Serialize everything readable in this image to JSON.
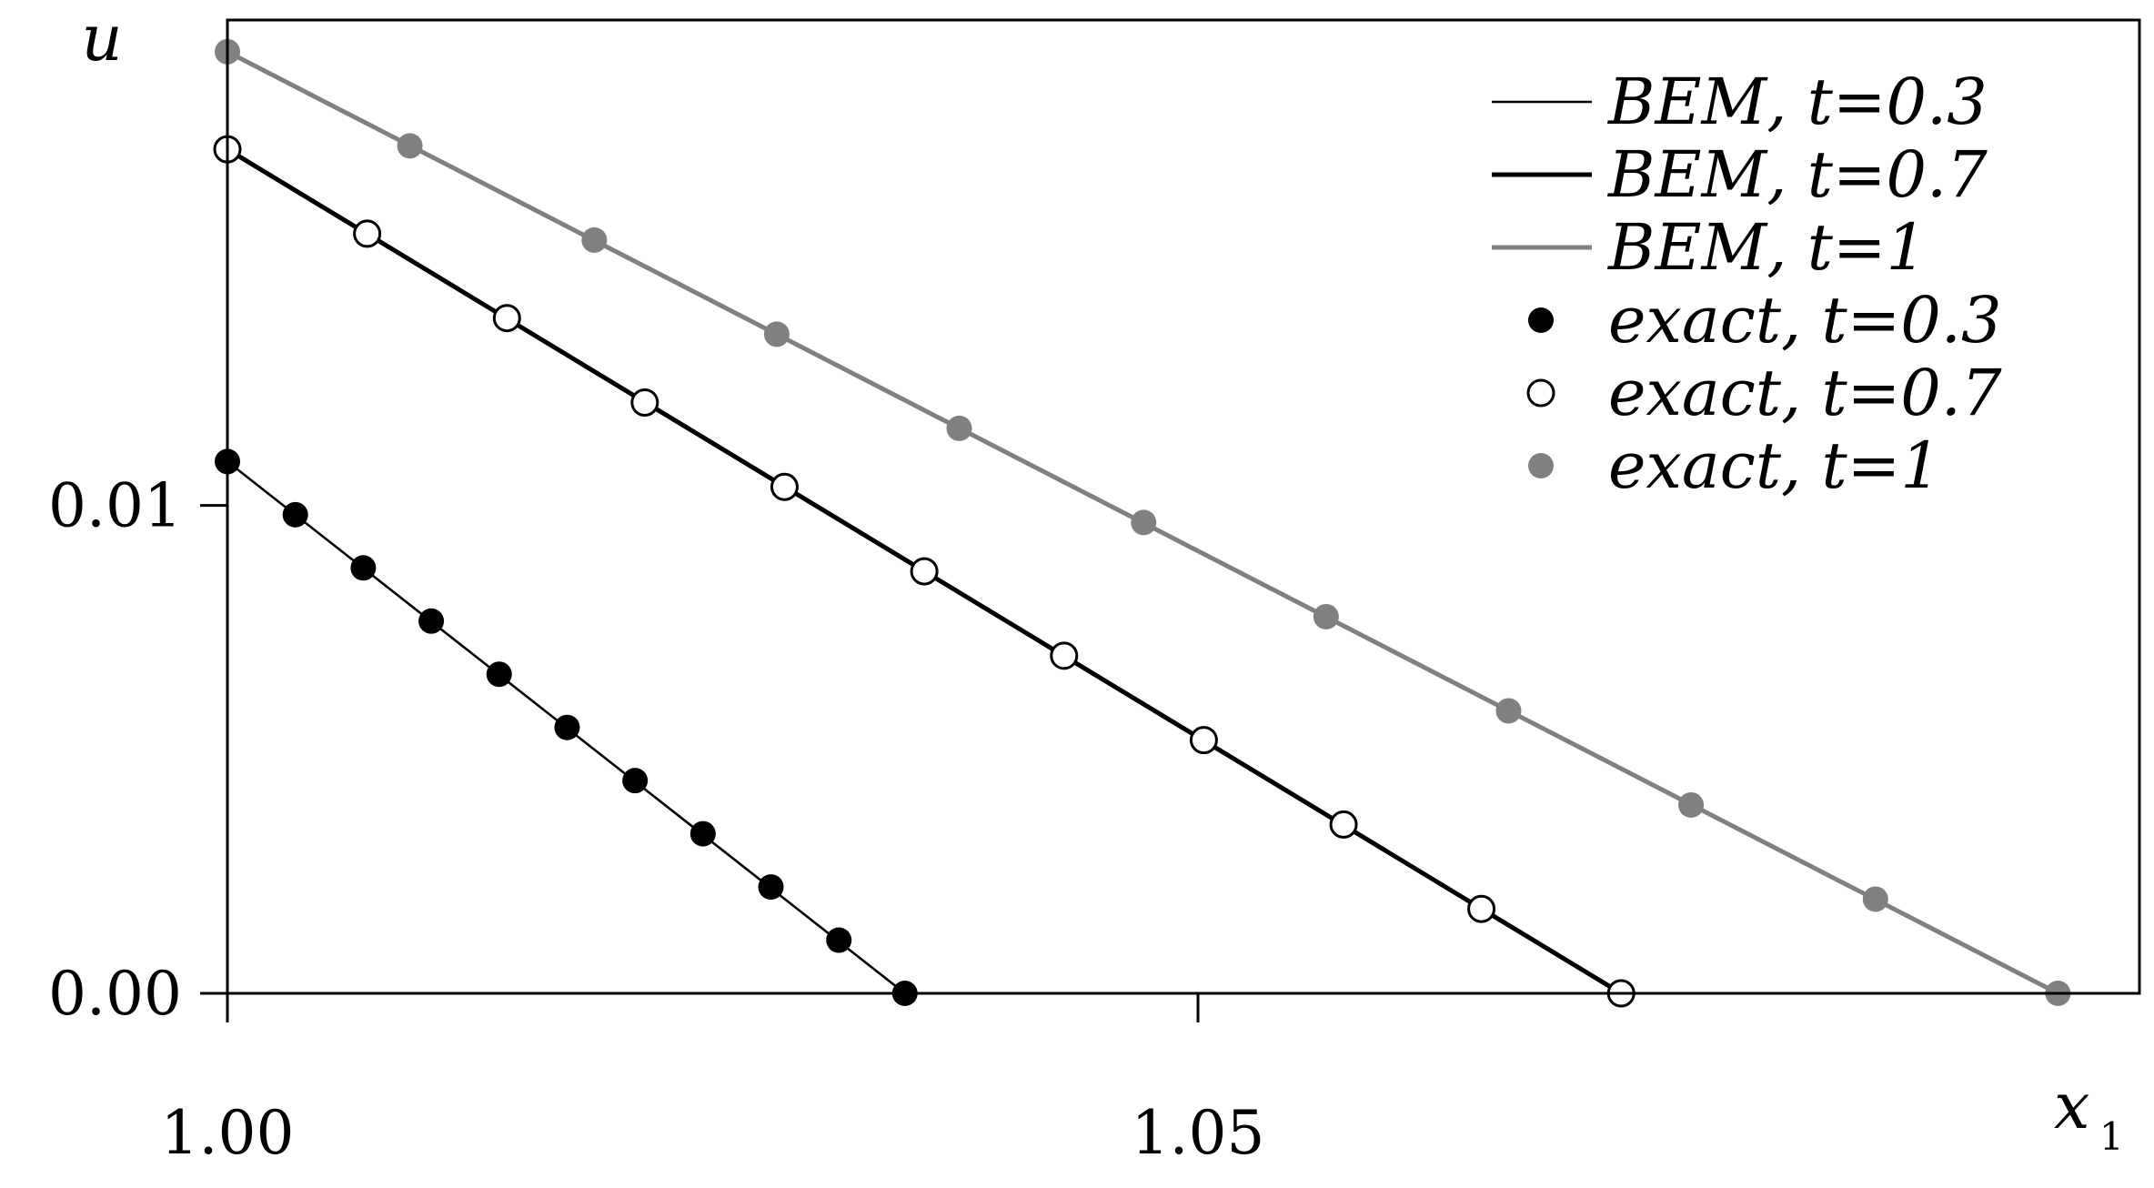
{
  "chart_data": {
    "type": "line",
    "title": "",
    "xlabel": "x",
    "xlabel_subscript": "1",
    "ylabel": "u",
    "xlim": [
      1.0,
      1.0985
    ],
    "ylim": [
      0.0,
      0.01995
    ],
    "x_ticks": [
      1.0,
      1.05
    ],
    "x_tick_labels": [
      "1.00",
      "1.05"
    ],
    "y_ticks": [
      0.0,
      0.01
    ],
    "y_tick_labels": [
      "0.00",
      "0.01"
    ],
    "grid": false,
    "legend_position": "top-right",
    "series": [
      {
        "name": "BEM, t=0.3",
        "kind": "line",
        "color": "#000000",
        "line_width": 2.6,
        "x": [
          1.0,
          1.0349
        ],
        "y": [
          0.0109,
          0.0
        ]
      },
      {
        "name": "BEM, t=0.7",
        "kind": "line",
        "color": "#000000",
        "line_width": 5,
        "x": [
          1.0,
          1.0718
        ],
        "y": [
          0.0173,
          0.0
        ]
      },
      {
        "name": "BEM, t=1",
        "kind": "line",
        "color": "#808080",
        "line_width": 5,
        "x": [
          1.0,
          1.0943
        ],
        "y": [
          0.0193,
          0.0
        ]
      },
      {
        "name": "exact, t=0.3",
        "kind": "markers",
        "marker": "filled",
        "color": "#000000",
        "x": [
          1.0,
          1.0035,
          1.007,
          1.0105,
          1.014,
          1.0175,
          1.021,
          1.0245,
          1.028,
          1.0315,
          1.0349
        ],
        "y": [
          0.0109,
          0.00981,
          0.00872,
          0.00763,
          0.00654,
          0.00545,
          0.00436,
          0.00327,
          0.00218,
          0.00109,
          0.0
        ]
      },
      {
        "name": "exact, t=0.7",
        "kind": "markers",
        "marker": "open",
        "color": "#000000",
        "x": [
          1.0,
          1.0072,
          1.0144,
          1.0215,
          1.0287,
          1.0359,
          1.0431,
          1.0503,
          1.0575,
          1.0646,
          1.0718
        ],
        "y": [
          0.0173,
          0.01557,
          0.01384,
          0.01211,
          0.01038,
          0.00865,
          0.00692,
          0.00519,
          0.00346,
          0.00173,
          0.0
        ]
      },
      {
        "name": "exact, t=1",
        "kind": "markers",
        "marker": "filled",
        "color": "#808080",
        "x": [
          1.0,
          1.0094,
          1.0189,
          1.0283,
          1.0377,
          1.0472,
          1.0566,
          1.066,
          1.0754,
          1.0849,
          1.0943
        ],
        "y": [
          0.0193,
          0.01737,
          0.01544,
          0.01351,
          0.01158,
          0.00965,
          0.00772,
          0.00579,
          0.00386,
          0.00193,
          0.0
        ]
      }
    ]
  }
}
